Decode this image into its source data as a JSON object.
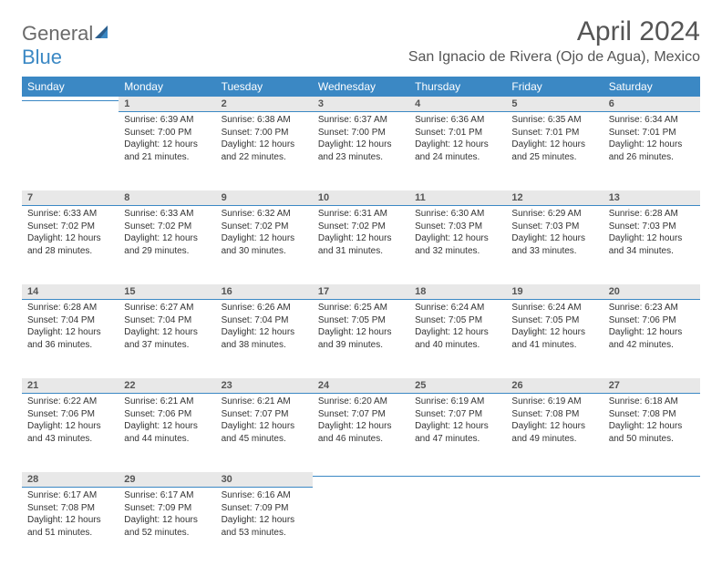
{
  "logo": {
    "text1": "General",
    "text2": "Blue"
  },
  "title": "April 2024",
  "location": "San Ignacio de Rivera (Ojo de Agua), Mexico",
  "colors": {
    "header_bg": "#3b88c4",
    "header_text": "#ffffff",
    "daynum_bg": "#e8e8e8",
    "border": "#3b88c4",
    "logo_gray": "#6a6a6a",
    "logo_blue": "#3b88c4"
  },
  "weekdays": [
    "Sunday",
    "Monday",
    "Tuesday",
    "Wednesday",
    "Thursday",
    "Friday",
    "Saturday"
  ],
  "weeks": [
    {
      "nums": [
        "",
        "1",
        "2",
        "3",
        "4",
        "5",
        "6"
      ],
      "cells": [
        null,
        {
          "sr": "Sunrise: 6:39 AM",
          "ss": "Sunset: 7:00 PM",
          "d1": "Daylight: 12 hours",
          "d2": "and 21 minutes."
        },
        {
          "sr": "Sunrise: 6:38 AM",
          "ss": "Sunset: 7:00 PM",
          "d1": "Daylight: 12 hours",
          "d2": "and 22 minutes."
        },
        {
          "sr": "Sunrise: 6:37 AM",
          "ss": "Sunset: 7:00 PM",
          "d1": "Daylight: 12 hours",
          "d2": "and 23 minutes."
        },
        {
          "sr": "Sunrise: 6:36 AM",
          "ss": "Sunset: 7:01 PM",
          "d1": "Daylight: 12 hours",
          "d2": "and 24 minutes."
        },
        {
          "sr": "Sunrise: 6:35 AM",
          "ss": "Sunset: 7:01 PM",
          "d1": "Daylight: 12 hours",
          "d2": "and 25 minutes."
        },
        {
          "sr": "Sunrise: 6:34 AM",
          "ss": "Sunset: 7:01 PM",
          "d1": "Daylight: 12 hours",
          "d2": "and 26 minutes."
        }
      ]
    },
    {
      "nums": [
        "7",
        "8",
        "9",
        "10",
        "11",
        "12",
        "13"
      ],
      "cells": [
        {
          "sr": "Sunrise: 6:33 AM",
          "ss": "Sunset: 7:02 PM",
          "d1": "Daylight: 12 hours",
          "d2": "and 28 minutes."
        },
        {
          "sr": "Sunrise: 6:33 AM",
          "ss": "Sunset: 7:02 PM",
          "d1": "Daylight: 12 hours",
          "d2": "and 29 minutes."
        },
        {
          "sr": "Sunrise: 6:32 AM",
          "ss": "Sunset: 7:02 PM",
          "d1": "Daylight: 12 hours",
          "d2": "and 30 minutes."
        },
        {
          "sr": "Sunrise: 6:31 AM",
          "ss": "Sunset: 7:02 PM",
          "d1": "Daylight: 12 hours",
          "d2": "and 31 minutes."
        },
        {
          "sr": "Sunrise: 6:30 AM",
          "ss": "Sunset: 7:03 PM",
          "d1": "Daylight: 12 hours",
          "d2": "and 32 minutes."
        },
        {
          "sr": "Sunrise: 6:29 AM",
          "ss": "Sunset: 7:03 PM",
          "d1": "Daylight: 12 hours",
          "d2": "and 33 minutes."
        },
        {
          "sr": "Sunrise: 6:28 AM",
          "ss": "Sunset: 7:03 PM",
          "d1": "Daylight: 12 hours",
          "d2": "and 34 minutes."
        }
      ]
    },
    {
      "nums": [
        "14",
        "15",
        "16",
        "17",
        "18",
        "19",
        "20"
      ],
      "cells": [
        {
          "sr": "Sunrise: 6:28 AM",
          "ss": "Sunset: 7:04 PM",
          "d1": "Daylight: 12 hours",
          "d2": "and 36 minutes."
        },
        {
          "sr": "Sunrise: 6:27 AM",
          "ss": "Sunset: 7:04 PM",
          "d1": "Daylight: 12 hours",
          "d2": "and 37 minutes."
        },
        {
          "sr": "Sunrise: 6:26 AM",
          "ss": "Sunset: 7:04 PM",
          "d1": "Daylight: 12 hours",
          "d2": "and 38 minutes."
        },
        {
          "sr": "Sunrise: 6:25 AM",
          "ss": "Sunset: 7:05 PM",
          "d1": "Daylight: 12 hours",
          "d2": "and 39 minutes."
        },
        {
          "sr": "Sunrise: 6:24 AM",
          "ss": "Sunset: 7:05 PM",
          "d1": "Daylight: 12 hours",
          "d2": "and 40 minutes."
        },
        {
          "sr": "Sunrise: 6:24 AM",
          "ss": "Sunset: 7:05 PM",
          "d1": "Daylight: 12 hours",
          "d2": "and 41 minutes."
        },
        {
          "sr": "Sunrise: 6:23 AM",
          "ss": "Sunset: 7:06 PM",
          "d1": "Daylight: 12 hours",
          "d2": "and 42 minutes."
        }
      ]
    },
    {
      "nums": [
        "21",
        "22",
        "23",
        "24",
        "25",
        "26",
        "27"
      ],
      "cells": [
        {
          "sr": "Sunrise: 6:22 AM",
          "ss": "Sunset: 7:06 PM",
          "d1": "Daylight: 12 hours",
          "d2": "and 43 minutes."
        },
        {
          "sr": "Sunrise: 6:21 AM",
          "ss": "Sunset: 7:06 PM",
          "d1": "Daylight: 12 hours",
          "d2": "and 44 minutes."
        },
        {
          "sr": "Sunrise: 6:21 AM",
          "ss": "Sunset: 7:07 PM",
          "d1": "Daylight: 12 hours",
          "d2": "and 45 minutes."
        },
        {
          "sr": "Sunrise: 6:20 AM",
          "ss": "Sunset: 7:07 PM",
          "d1": "Daylight: 12 hours",
          "d2": "and 46 minutes."
        },
        {
          "sr": "Sunrise: 6:19 AM",
          "ss": "Sunset: 7:07 PM",
          "d1": "Daylight: 12 hours",
          "d2": "and 47 minutes."
        },
        {
          "sr": "Sunrise: 6:19 AM",
          "ss": "Sunset: 7:08 PM",
          "d1": "Daylight: 12 hours",
          "d2": "and 49 minutes."
        },
        {
          "sr": "Sunrise: 6:18 AM",
          "ss": "Sunset: 7:08 PM",
          "d1": "Daylight: 12 hours",
          "d2": "and 50 minutes."
        }
      ]
    },
    {
      "nums": [
        "28",
        "29",
        "30",
        "",
        "",
        "",
        ""
      ],
      "cells": [
        {
          "sr": "Sunrise: 6:17 AM",
          "ss": "Sunset: 7:08 PM",
          "d1": "Daylight: 12 hours",
          "d2": "and 51 minutes."
        },
        {
          "sr": "Sunrise: 6:17 AM",
          "ss": "Sunset: 7:09 PM",
          "d1": "Daylight: 12 hours",
          "d2": "and 52 minutes."
        },
        {
          "sr": "Sunrise: 6:16 AM",
          "ss": "Sunset: 7:09 PM",
          "d1": "Daylight: 12 hours",
          "d2": "and 53 minutes."
        },
        null,
        null,
        null,
        null
      ]
    }
  ]
}
